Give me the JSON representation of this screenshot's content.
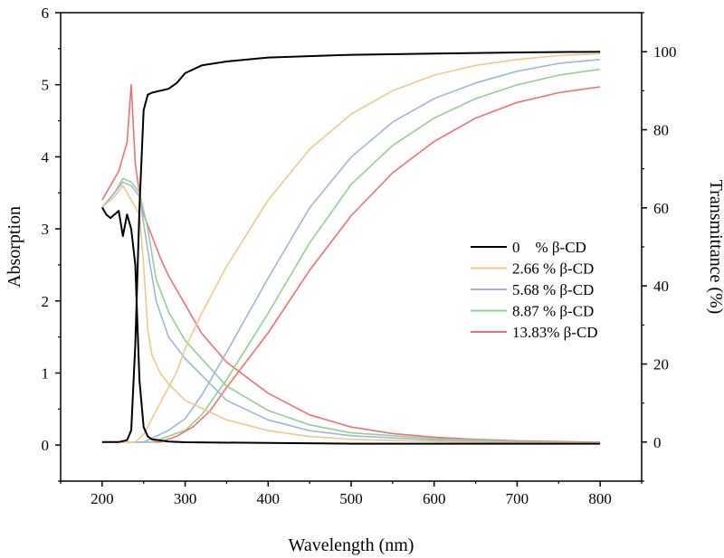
{
  "chart_data": {
    "type": "line",
    "title": "",
    "xlabel": "Wavelength (nm)",
    "ylabel": "Absorption",
    "y2label": "Transmittance (%)",
    "xlim": [
      150,
      850
    ],
    "ylim": [
      -0.5,
      6
    ],
    "y2lim": [
      -10,
      110
    ],
    "x_ticks": [
      200,
      300,
      400,
      500,
      600,
      700,
      800
    ],
    "y_ticks": [
      0,
      1,
      2,
      3,
      4,
      5,
      6
    ],
    "y2_ticks": [
      0,
      20,
      40,
      60,
      80,
      100
    ],
    "x_tick_labels": [
      "200",
      "300",
      "400",
      "500",
      "600",
      "700",
      "800"
    ],
    "y_tick_labels": [
      "0",
      "1",
      "2",
      "3",
      "4",
      "5",
      "6"
    ],
    "y2_tick_labels": [
      "0",
      "20",
      "40",
      "60",
      "80",
      "100"
    ],
    "legend_position": "right-middle",
    "series": [
      {
        "name": "0 % β-CD",
        "legend_label": "0    % β-CD",
        "color": "#000000",
        "absorption": {
          "x": [
            200,
            205,
            210,
            215,
            220,
            225,
            230,
            235,
            240,
            245,
            250,
            255,
            260,
            280,
            300,
            400,
            500,
            600,
            700,
            800
          ],
          "y": [
            3.3,
            3.2,
            3.15,
            3.2,
            3.25,
            2.9,
            3.2,
            3.0,
            2.5,
            0.9,
            0.25,
            0.12,
            0.08,
            0.05,
            0.04,
            0.03,
            0.02,
            0.02,
            0.02,
            0.02
          ]
        },
        "transmittance": {
          "x": [
            200,
            220,
            230,
            235,
            240,
            245,
            250,
            255,
            260,
            270,
            280,
            290,
            300,
            320,
            350,
            400,
            500,
            600,
            700,
            800
          ],
          "y": [
            0,
            0,
            0.5,
            3,
            25,
            60,
            85,
            89,
            89.5,
            90,
            90.5,
            92,
            94.5,
            96.5,
            97.5,
            98.5,
            99.2,
            99.5,
            99.8,
            100
          ]
        }
      },
      {
        "name": "2.66 % β-CD",
        "legend_label": "2.66 % β-CD",
        "color": "#f5c58a",
        "absorption": {
          "x": [
            200,
            215,
            225,
            235,
            245,
            250,
            255,
            260,
            270,
            280,
            300,
            350,
            400,
            450,
            500,
            600,
            700,
            800
          ],
          "y": [
            3.3,
            3.45,
            3.6,
            3.4,
            3.2,
            2.5,
            1.6,
            1.25,
            1.0,
            0.85,
            0.62,
            0.35,
            0.2,
            0.12,
            0.08,
            0.05,
            0.03,
            0.03
          ]
        },
        "transmittance": {
          "x": [
            200,
            240,
            250,
            260,
            270,
            280,
            290,
            300,
            320,
            350,
            400,
            450,
            500,
            550,
            600,
            650,
            700,
            750,
            800
          ],
          "y": [
            0,
            0,
            2,
            6,
            10,
            14,
            18,
            24,
            33,
            45,
            62,
            75,
            84,
            90,
            94,
            96.5,
            98,
            99,
            99.5
          ]
        }
      },
      {
        "name": "5.68 % β-CD",
        "legend_label": "5.68 % β-CD",
        "color": "#9db6e0",
        "absorption": {
          "x": [
            200,
            215,
            225,
            235,
            245,
            255,
            265,
            280,
            300,
            350,
            400,
            450,
            500,
            600,
            700,
            800
          ],
          "y": [
            3.3,
            3.5,
            3.65,
            3.6,
            3.45,
            2.7,
            2.0,
            1.5,
            1.2,
            0.62,
            0.35,
            0.2,
            0.13,
            0.07,
            0.04,
            0.03
          ]
        },
        "transmittance": {
          "x": [
            200,
            250,
            260,
            280,
            300,
            320,
            350,
            400,
            450,
            500,
            550,
            600,
            650,
            700,
            750,
            800
          ],
          "y": [
            0,
            0,
            1,
            3,
            6,
            12,
            23,
            42,
            60,
            73,
            82,
            88,
            92,
            95,
            97,
            98
          ]
        }
      },
      {
        "name": "8.87 % β-CD",
        "legend_label": "8.87 % β-CD",
        "color": "#8fd18f",
        "absorption": {
          "x": [
            200,
            215,
            225,
            235,
            245,
            255,
            265,
            280,
            300,
            350,
            400,
            450,
            500,
            600,
            700,
            800
          ],
          "y": [
            3.3,
            3.5,
            3.7,
            3.65,
            3.5,
            3.0,
            2.3,
            1.85,
            1.45,
            0.82,
            0.48,
            0.28,
            0.17,
            0.09,
            0.05,
            0.03
          ]
        },
        "transmittance": {
          "x": [
            200,
            260,
            280,
            300,
            320,
            350,
            400,
            450,
            500,
            550,
            600,
            650,
            700,
            750,
            800
          ],
          "y": [
            0,
            0,
            1.5,
            3,
            7,
            16,
            33,
            51,
            66,
            76,
            83,
            88,
            91.5,
            94,
            95.5
          ]
        }
      },
      {
        "name": "13.83% β-CD",
        "legend_label": "13.83% β-CD",
        "color": "#f07070",
        "absorption": {
          "x": [
            200,
            210,
            220,
            230,
            235,
            240,
            245,
            250,
            260,
            270,
            280,
            300,
            320,
            350,
            400,
            450,
            500,
            550,
            600,
            650,
            700,
            800
          ],
          "y": [
            3.4,
            3.6,
            3.8,
            4.2,
            5.0,
            3.9,
            3.5,
            3.2,
            2.9,
            2.6,
            2.35,
            1.95,
            1.55,
            1.15,
            0.72,
            0.42,
            0.25,
            0.16,
            0.11,
            0.08,
            0.06,
            0.04
          ]
        },
        "transmittance": {
          "x": [
            200,
            270,
            290,
            310,
            330,
            350,
            400,
            450,
            500,
            550,
            600,
            650,
            700,
            750,
            800
          ],
          "y": [
            0,
            0,
            1.5,
            4,
            8,
            14,
            28,
            44,
            58,
            69,
            77,
            83,
            87,
            89.5,
            91
          ]
        }
      }
    ]
  }
}
